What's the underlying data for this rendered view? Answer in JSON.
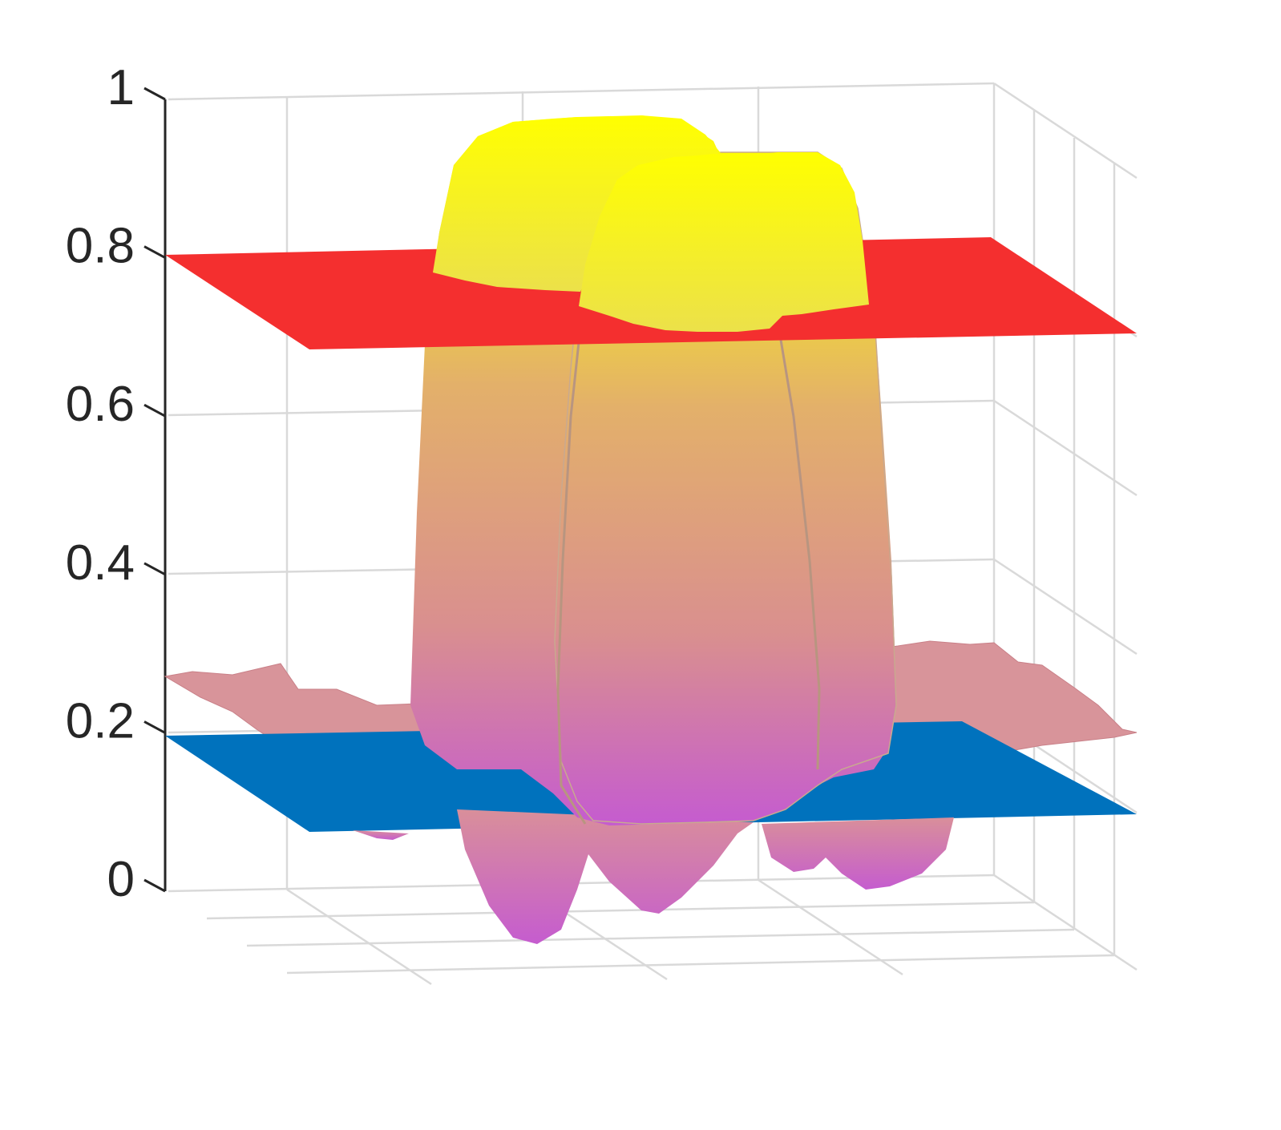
{
  "chart_data": {
    "type": "surface3d",
    "title": "",
    "xlabel": "",
    "ylabel": "",
    "zlabel": "",
    "zlim": [
      0,
      1
    ],
    "z_ticks": [
      0,
      0.2,
      0.4,
      0.6,
      0.8,
      1
    ],
    "z_tick_labels": [
      "0",
      "0.2",
      "0.4",
      "0.6",
      "0.8",
      "1"
    ],
    "grid": true,
    "legend": "none",
    "planes": [
      {
        "z": 0.8,
        "color": "#f42f2f"
      },
      {
        "z": 0.2,
        "color": "#0072bd"
      }
    ],
    "surface": {
      "baseline_level": 0.2,
      "peak_level": 0.95,
      "min_level": 0.0,
      "colormap": [
        "#c55ccf",
        "#d98f8f",
        "#e3b06a",
        "#ffff00"
      ]
    }
  }
}
